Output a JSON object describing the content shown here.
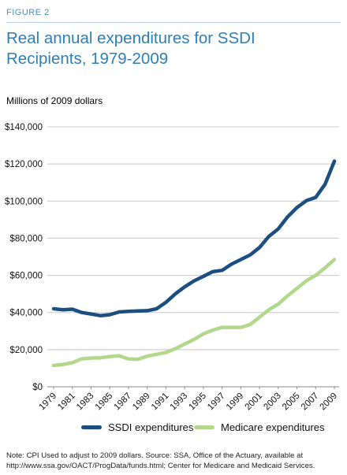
{
  "figure_label": "FIGURE 2",
  "title": "Real annual expenditures for SSDI Recipients, 1979-2009",
  "units_label": "Millions of 2009 dollars",
  "note": "Note: CPI Used to adjust to 2009 dollars. Source: SSA, Office of the Actuary, available at http://www.ssa.gov/OACT/ProgData/funds.html; Center for Medicare and Medicaid Services.",
  "colors": {
    "ssdi": "#1c4f80",
    "medicare": "#b3d88c",
    "title": "#2f7eb5",
    "grid": "#c8c8c8"
  },
  "chart_data": {
    "type": "line",
    "title": "Real annual expenditures for SSDI Recipients, 1979-2009",
    "ylabel": "Millions of 2009 dollars",
    "xlabel": "",
    "ylim": [
      0,
      140000
    ],
    "yticks": [
      0,
      20000,
      40000,
      60000,
      80000,
      100000,
      120000,
      140000
    ],
    "ytick_labels": [
      "$0",
      "$20,000",
      "$40,000",
      "$60,000",
      "$80,000",
      "$100,000",
      "$120,000",
      "$140,000"
    ],
    "xticks": [
      1979,
      1981,
      1983,
      1985,
      1987,
      1989,
      1991,
      1993,
      1995,
      1997,
      1999,
      2001,
      2003,
      2005,
      2007,
      2009
    ],
    "grid": true,
    "legend_position": "bottom",
    "x": [
      1979,
      1980,
      1981,
      1982,
      1983,
      1984,
      1985,
      1986,
      1987,
      1988,
      1989,
      1990,
      1991,
      1992,
      1993,
      1994,
      1995,
      1996,
      1997,
      1998,
      1999,
      2000,
      2001,
      2002,
      2003,
      2004,
      2005,
      2006,
      2007,
      2008,
      2009
    ],
    "series": [
      {
        "name": "SSDI expenditures",
        "values": [
          42000,
          41500,
          41800,
          40000,
          39200,
          38300,
          38800,
          40300,
          40600,
          40800,
          41000,
          42000,
          45500,
          50000,
          53800,
          57000,
          59500,
          62000,
          62700,
          66000,
          68500,
          71000,
          75000,
          81000,
          85000,
          91500,
          96500,
          100200,
          102000,
          109000,
          121500
        ]
      },
      {
        "name": "Medicare expenditures",
        "values": [
          11500,
          12000,
          13000,
          15000,
          15500,
          15600,
          16300,
          16700,
          15000,
          14800,
          16500,
          17500,
          18500,
          20500,
          23000,
          25500,
          28500,
          30500,
          32000,
          32000,
          32000,
          33500,
          37500,
          41500,
          44500,
          49000,
          53000,
          57000,
          60000,
          64000,
          68500
        ]
      }
    ]
  }
}
